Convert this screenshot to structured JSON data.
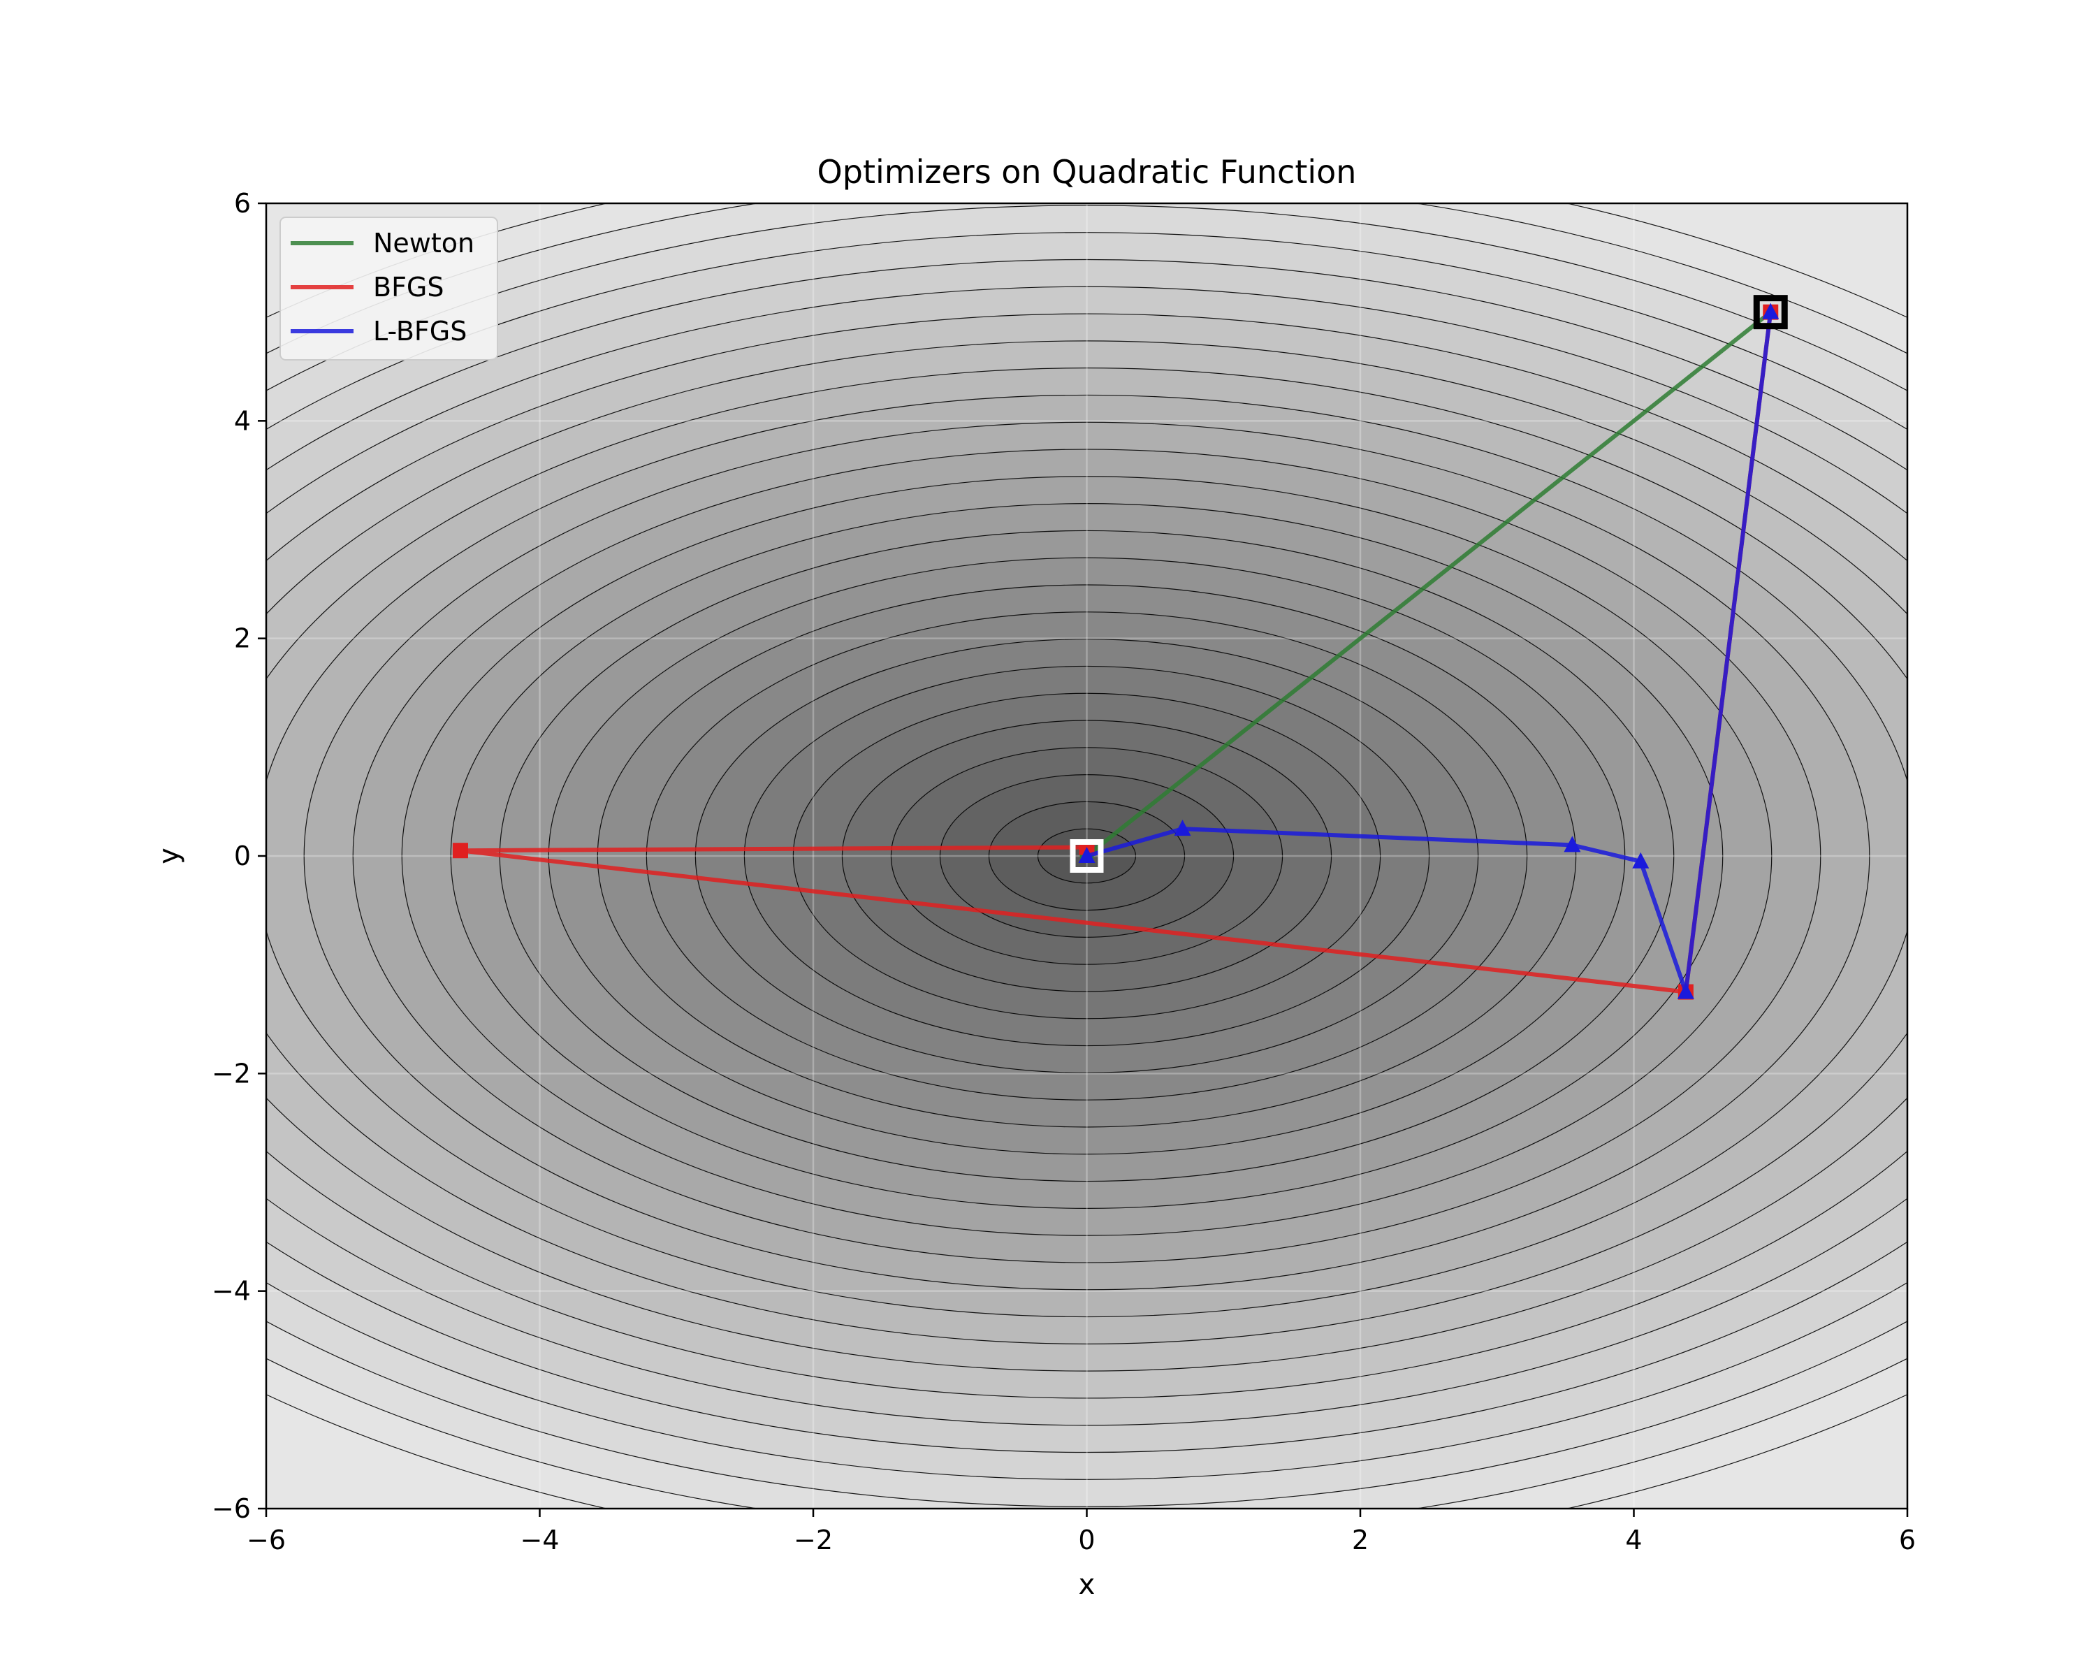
{
  "chart_data": {
    "type": "line",
    "title": "Optimizers on Quadratic Function",
    "xlabel": "x",
    "ylabel": "y",
    "xlim": [
      -6,
      6
    ],
    "ylim": [
      -6,
      6
    ],
    "xticks": [
      -6,
      -4,
      -2,
      0,
      2,
      4,
      6
    ],
    "yticks": [
      -6,
      -4,
      -2,
      0,
      2,
      4,
      6
    ],
    "xtick_labels": [
      "−6",
      "−4",
      "−2",
      "0",
      "2",
      "4",
      "6"
    ],
    "ytick_labels": [
      "−6",
      "−4",
      "−2",
      "0",
      "2",
      "4",
      "6"
    ],
    "grid": true,
    "legend_position": "upper-left",
    "background": {
      "type": "contour",
      "function": "quadratic",
      "minimum": [
        0,
        0
      ],
      "start": [
        5,
        5
      ],
      "colormap": "gray"
    },
    "series": [
      {
        "name": "Newton",
        "color": "#2e7d32",
        "marker": "circle",
        "x": [
          5.0,
          0.0
        ],
        "y": [
          5.0,
          0.0
        ]
      },
      {
        "name": "BFGS",
        "color": "#e02020",
        "marker": "square",
        "x": [
          5.0,
          4.38,
          -4.58,
          0.0
        ],
        "y": [
          5.0,
          -1.25,
          0.05,
          0.08
        ]
      },
      {
        "name": "L-BFGS",
        "color": "#1a1adc",
        "marker": "triangle",
        "x": [
          5.0,
          4.38,
          4.05,
          3.55,
          0.7,
          0.0
        ],
        "y": [
          5.0,
          -1.25,
          -0.05,
          0.1,
          0.25,
          0.0
        ]
      }
    ],
    "markers": [
      {
        "name": "start",
        "x": 5.0,
        "y": 5.0,
        "color": "#000000"
      },
      {
        "name": "minimum",
        "x": 0.0,
        "y": 0.0,
        "color": "#ffffff"
      }
    ]
  }
}
